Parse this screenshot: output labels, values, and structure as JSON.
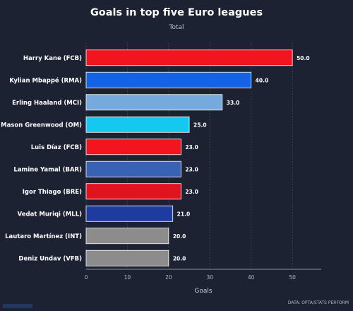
{
  "chart_data": {
    "type": "bar",
    "orientation": "horizontal",
    "title": "Goals in top five Euro leagues",
    "subtitle": "Total",
    "xlabel": "Goals",
    "xlim": [
      0,
      57
    ],
    "xticks": [
      0,
      10,
      20,
      30,
      40,
      50
    ],
    "grid": true,
    "categories": [
      "Harry Kane (FCB)",
      "Kylian Mbappé (RMA)",
      "Erling Haaland (MCI)",
      "Mason Greenwood (OM)",
      "Luis Díaz (FCB)",
      "Lamine Yamal (BAR)",
      "Igor Thiago (BRE)",
      "Vedat Muriqi (MLL)",
      "Lautaro Martínez (INT)",
      "Deniz Undav (VFB)"
    ],
    "values": [
      50,
      40,
      33,
      25,
      23,
      23,
      23,
      21,
      20,
      20
    ],
    "value_labels": [
      "50.0",
      "40.0",
      "33.0",
      "25.0",
      "23.0",
      "23.0",
      "23.0",
      "21.0",
      "20.0",
      "20.0"
    ],
    "colors": [
      "#f2141e",
      "#1463e6",
      "#76a9dc",
      "#14c8f0",
      "#f2141e",
      "#3a62b4",
      "#e0141e",
      "#1e3ca0",
      "#8c8c8c",
      "#8c8c8c"
    ],
    "source": "DATA: OPTA/STATS PERFORM"
  }
}
